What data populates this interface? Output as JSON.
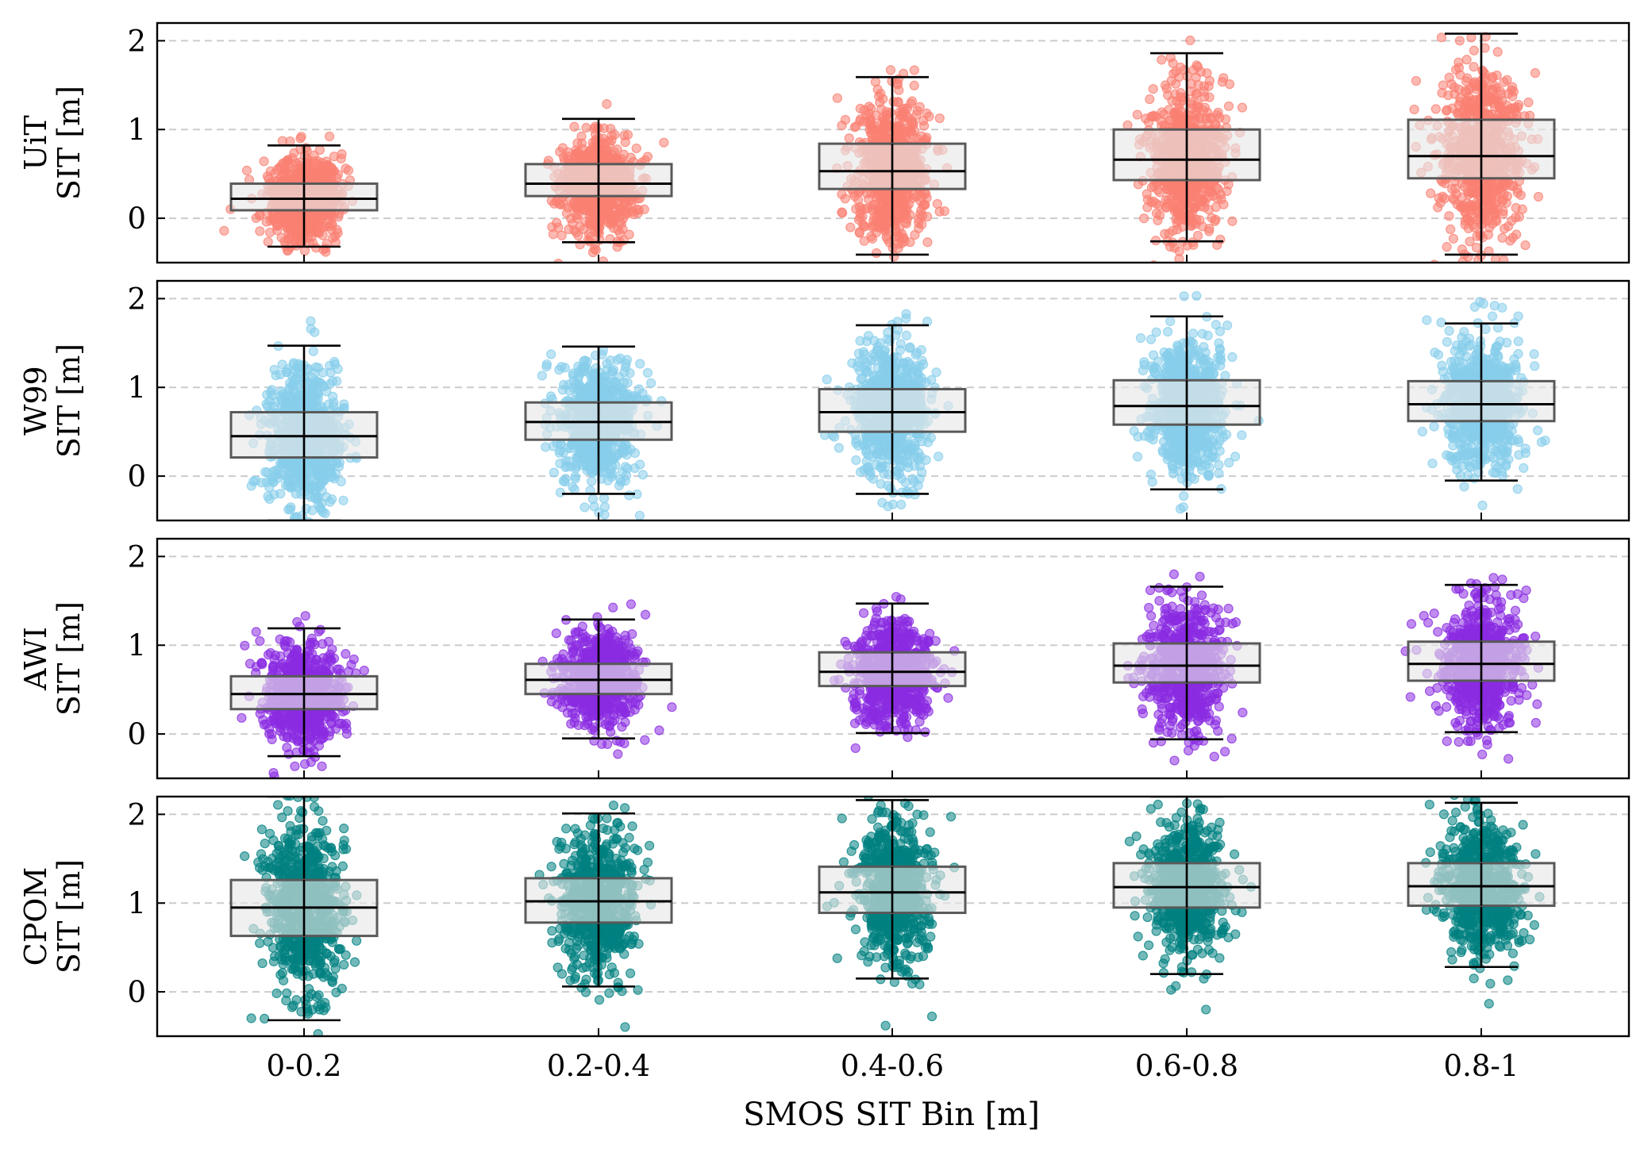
{
  "chart_data": {
    "type": "box",
    "xlabel": "SMOS SIT Bin [m]",
    "categories": [
      "0-0.2",
      "0.2-0.4",
      "0.4-0.6",
      "0.6-0.8",
      "0.8-1"
    ],
    "ylim": [
      -0.5,
      2.2
    ],
    "yticks": [
      0,
      1,
      2
    ],
    "ygrid": "dashed",
    "box_fill": "#e6e6e6",
    "box_edge": "#595959",
    "panels": [
      {
        "ylabel_line1": "UiT",
        "ylabel_line2": "SIT [m]",
        "point_color": "#fa8072",
        "boxes": [
          {
            "whislo": -0.32,
            "q1": 0.09,
            "median": 0.22,
            "q3": 0.39,
            "whishi": 0.82
          },
          {
            "whislo": -0.27,
            "q1": 0.25,
            "median": 0.39,
            "q3": 0.61,
            "whishi": 1.12
          },
          {
            "whislo": -0.41,
            "q1": 0.33,
            "median": 0.53,
            "q3": 0.84,
            "whishi": 1.59
          },
          {
            "whislo": -0.26,
            "q1": 0.43,
            "median": 0.66,
            "q3": 1.0,
            "whishi": 1.86
          },
          {
            "whislo": -0.41,
            "q1": 0.45,
            "median": 0.7,
            "q3": 1.11,
            "whishi": 2.08
          }
        ]
      },
      {
        "ylabel_line1": "W99",
        "ylabel_line2": "SIT [m]",
        "point_color": "#87ceeb",
        "boxes": [
          {
            "whislo": -0.5,
            "q1": 0.21,
            "median": 0.45,
            "q3": 0.72,
            "whishi": 1.47
          },
          {
            "whislo": -0.2,
            "q1": 0.41,
            "median": 0.61,
            "q3": 0.83,
            "whishi": 1.46
          },
          {
            "whislo": -0.2,
            "q1": 0.5,
            "median": 0.72,
            "q3": 0.98,
            "whishi": 1.7
          },
          {
            "whislo": -0.15,
            "q1": 0.58,
            "median": 0.79,
            "q3": 1.08,
            "whishi": 1.8
          },
          {
            "whislo": -0.05,
            "q1": 0.62,
            "median": 0.81,
            "q3": 1.07,
            "whishi": 1.72
          }
        ]
      },
      {
        "ylabel_line1": "AWI",
        "ylabel_line2": "SIT [m]",
        "point_color": "#8a2be2",
        "boxes": [
          {
            "whislo": -0.25,
            "q1": 0.28,
            "median": 0.45,
            "q3": 0.65,
            "whishi": 1.19
          },
          {
            "whislo": -0.05,
            "q1": 0.45,
            "median": 0.61,
            "q3": 0.79,
            "whishi": 1.29
          },
          {
            "whislo": 0.01,
            "q1": 0.54,
            "median": 0.7,
            "q3": 0.92,
            "whishi": 1.47
          },
          {
            "whislo": -0.06,
            "q1": 0.58,
            "median": 0.77,
            "q3": 1.02,
            "whishi": 1.66
          },
          {
            "whislo": 0.02,
            "q1": 0.6,
            "median": 0.79,
            "q3": 1.04,
            "whishi": 1.68
          }
        ]
      },
      {
        "ylabel_line1": "CPOM",
        "ylabel_line2": "SIT [m]",
        "point_color": "#008080",
        "boxes": [
          {
            "whislo": -0.32,
            "q1": 0.63,
            "median": 0.95,
            "q3": 1.26,
            "whishi": 2.2
          },
          {
            "whislo": 0.06,
            "q1": 0.78,
            "median": 1.02,
            "q3": 1.28,
            "whishi": 2.01
          },
          {
            "whislo": 0.15,
            "q1": 0.89,
            "median": 1.12,
            "q3": 1.41,
            "whishi": 2.16
          },
          {
            "whislo": 0.2,
            "q1": 0.95,
            "median": 1.18,
            "q3": 1.45,
            "whishi": 2.2
          },
          {
            "whislo": 0.28,
            "q1": 0.97,
            "median": 1.19,
            "q3": 1.45,
            "whishi": 2.13
          }
        ]
      }
    ]
  }
}
